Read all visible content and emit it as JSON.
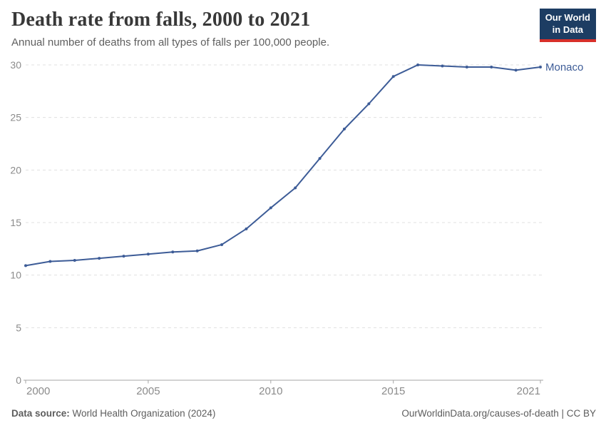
{
  "header": {
    "title": "Death rate from falls, 2000 to 2021",
    "subtitle": "Annual number of deaths from all types of falls per 100,000 people."
  },
  "logo": {
    "line1": "Our World",
    "line2": "in Data"
  },
  "chart_data": {
    "type": "line",
    "title": "Death rate from falls, 2000 to 2021",
    "xlabel": "",
    "ylabel": "",
    "xlim": [
      2000,
      2021
    ],
    "ylim": [
      0,
      30
    ],
    "xticks": [
      2000,
      2005,
      2010,
      2015,
      2021
    ],
    "yticks": [
      0,
      5,
      10,
      15,
      20,
      25,
      30
    ],
    "grid": "horizontal-dashed",
    "legend_position": "end-of-line-label",
    "series": [
      {
        "name": "Monaco",
        "x": [
          2000,
          2001,
          2002,
          2003,
          2004,
          2005,
          2006,
          2007,
          2008,
          2009,
          2010,
          2011,
          2012,
          2013,
          2014,
          2015,
          2016,
          2017,
          2018,
          2019,
          2020,
          2021
        ],
        "values": [
          10.9,
          11.3,
          11.4,
          11.6,
          11.8,
          12.0,
          12.2,
          12.3,
          12.9,
          14.4,
          16.4,
          18.3,
          21.1,
          23.9,
          26.3,
          28.9,
          30.0,
          29.9,
          29.8,
          29.8,
          29.5,
          29.8
        ]
      }
    ],
    "line_color": "#3d5c97",
    "tick_color": "#8b8b8b",
    "grid_color": "#e0e0e0",
    "axis_color": "#a5a5a5"
  },
  "footer": {
    "source_label": "Data source:",
    "source_text": " World Health Organization (2024)",
    "credit": "OurWorldinData.org/causes-of-death | CC BY"
  },
  "colors": {
    "brand_navy": "#1d3d63",
    "brand_red": "#d7302a",
    "title_text": "#383838",
    "subtitle_text": "#5f5f5f"
  }
}
